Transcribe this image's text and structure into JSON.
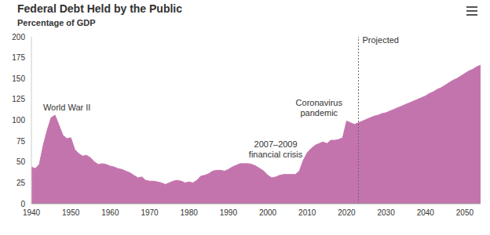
{
  "chart_data": {
    "type": "area",
    "title": "Federal Debt Held by the Public",
    "subtitle": "Percentage of GDP",
    "x": [
      1940,
      1941,
      1942,
      1943,
      1944,
      1945,
      1946,
      1947,
      1948,
      1949,
      1950,
      1951,
      1952,
      1953,
      1954,
      1955,
      1956,
      1957,
      1958,
      1959,
      1960,
      1961,
      1962,
      1963,
      1964,
      1965,
      1966,
      1967,
      1968,
      1969,
      1970,
      1971,
      1972,
      1973,
      1974,
      1975,
      1976,
      1977,
      1978,
      1979,
      1980,
      1981,
      1982,
      1983,
      1984,
      1985,
      1986,
      1987,
      1988,
      1989,
      1990,
      1991,
      1992,
      1993,
      1994,
      1995,
      1996,
      1997,
      1998,
      1999,
      2000,
      2001,
      2002,
      2003,
      2004,
      2005,
      2006,
      2007,
      2008,
      2009,
      2010,
      2011,
      2012,
      2013,
      2014,
      2015,
      2016,
      2017,
      2018,
      2019,
      2020,
      2021,
      2022,
      2023,
      2024,
      2025,
      2026,
      2027,
      2028,
      2029,
      2030,
      2031,
      2032,
      2033,
      2034,
      2035,
      2036,
      2037,
      2038,
      2039,
      2040,
      2041,
      2042,
      2043,
      2044,
      2045,
      2046,
      2047,
      2048,
      2049,
      2050,
      2051,
      2052,
      2053,
      2054
    ],
    "values": [
      44,
      42,
      47,
      70,
      88,
      103,
      106,
      94,
      82,
      78,
      79,
      65,
      60,
      57,
      58,
      55,
      50,
      47,
      48,
      47,
      45,
      44,
      42,
      41,
      39,
      37,
      34,
      31,
      32,
      28,
      27,
      27,
      26,
      25,
      23,
      25,
      27,
      28,
      27,
      25,
      26,
      25,
      28,
      33,
      34,
      36,
      39,
      40,
      40,
      39,
      41,
      44,
      46,
      48,
      48,
      48,
      47,
      45,
      42,
      39,
      34,
      31,
      32,
      34,
      35,
      35,
      35,
      35,
      39,
      52,
      61,
      66,
      70,
      72,
      74,
      72,
      76,
      76,
      77,
      79,
      99,
      97,
      95,
      97,
      99,
      101,
      103,
      105,
      106,
      108,
      109,
      111,
      113,
      115,
      117,
      119,
      121,
      123,
      125,
      127,
      129,
      132,
      134,
      137,
      139,
      142,
      145,
      148,
      150,
      153,
      156,
      159,
      161,
      164,
      166
    ],
    "color": "#c474ad",
    "xlim": [
      1940,
      2054
    ],
    "xticks": [
      1940,
      1950,
      1960,
      1970,
      1980,
      1990,
      2000,
      2010,
      2020,
      2030,
      2040,
      2050
    ],
    "ylim": [
      0,
      200
    ],
    "yticks": [
      0,
      25,
      50,
      75,
      100,
      125,
      150,
      175,
      200
    ],
    "grid": false,
    "annotations": [
      {
        "text": [
          "World War II"
        ],
        "x": 1949,
        "y": 112
      },
      {
        "text": [
          "2007–2009",
          "financial crisis"
        ],
        "x": 2002,
        "y": 68
      },
      {
        "text": [
          "Coronavirus",
          "pandemic"
        ],
        "x": 2013,
        "y": 117
      }
    ],
    "projected": {
      "text": "Projected",
      "x": 2023
    }
  }
}
